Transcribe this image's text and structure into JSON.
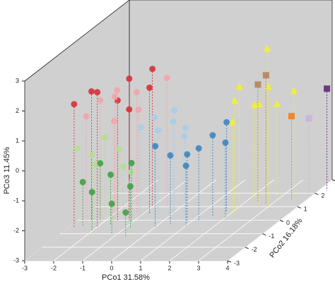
{
  "chart_data": {
    "type": "scatter3d",
    "xlabel": "PCo1 31.58%",
    "ylabel": "PCo2 16.18%",
    "zlabel": "PCo3 11.45%",
    "xlim": [
      -3,
      4
    ],
    "ylim": [
      -3,
      3
    ],
    "zlim": [
      -3,
      3
    ],
    "xticks": [
      -3,
      -2,
      -1,
      0,
      1,
      2,
      3,
      4
    ],
    "yticks": [
      -3,
      -2,
      -1,
      0,
      1,
      2,
      3
    ],
    "zticks": [
      -3,
      -2,
      -1,
      0,
      1,
      2,
      3
    ],
    "grid": true,
    "series": [
      {
        "color": "#d7303a",
        "marker": "circle",
        "x": [
          -2.5,
          -2.8,
          -1.5,
          -1.0,
          -1.2,
          -2.0,
          -1.6,
          -0.8
        ],
        "y": [
          0,
          -0.5,
          0.5,
          1,
          0,
          -0.5,
          0,
          0.5
        ],
        "z": [
          1.3,
          1.1,
          1.5,
          1.6,
          0.7,
          1.5,
          1.0,
          1.2
        ]
      },
      {
        "color": "#f4a3a8",
        "marker": "circle",
        "x": [
          -2.2,
          -1.8,
          -1.3,
          -2.5,
          -1.0,
          -1.6,
          -0.5,
          -2.0
        ],
        "y": [
          0,
          0.3,
          0.6,
          -0.3,
          0.2,
          -0.2,
          1,
          0.5
        ],
        "z": [
          1.0,
          1.2,
          1.0,
          0.6,
          0.6,
          0.4,
          1.3,
          0.9
        ]
      },
      {
        "color": "#a9cde6",
        "marker": "circle",
        "x": [
          -0.5,
          -0.2,
          0.2,
          0.5,
          -0.8,
          0.0,
          0.7
        ],
        "y": [
          0.3,
          0,
          0.2,
          0.4,
          0,
          0.6,
          0
        ],
        "z": [
          0.3,
          0,
          0.2,
          -0.1,
          0.1,
          0.4,
          -0.2
        ]
      },
      {
        "color": "#3d85c0",
        "marker": "circle",
        "x": [
          0,
          0.4,
          0.8,
          1.2,
          1.5,
          1.8,
          1.0,
          2.0
        ],
        "y": [
          -0.5,
          -0.3,
          0,
          0,
          0.3,
          0.6,
          -0.4,
          0.2
        ],
        "z": [
          -0.3,
          -0.7,
          -0.8,
          -0.6,
          -0.3,
          0,
          -1.0,
          -0.5
        ]
      },
      {
        "color": "#b5dd93",
        "marker": "circle",
        "x": [
          -3,
          -2.6,
          -2.2,
          -1.8,
          -1.4,
          -2.4,
          -1.0
        ],
        "y": [
          0,
          0.2,
          -0.3,
          0.4,
          0,
          0.6,
          -0.2
        ],
        "z": [
          -0.6,
          -0.9,
          -1.0,
          -0.8,
          -1.2,
          -0.5,
          -1.3
        ]
      },
      {
        "color": "#43a145",
        "marker": "circle",
        "x": [
          -2.5,
          -2.0,
          -1.6,
          -1.2,
          -0.8,
          -2.2,
          -1.0,
          -0.6
        ],
        "y": [
          -0.5,
          -0.8,
          -0.4,
          -1,
          -0.6,
          0,
          -0.2,
          -1.2
        ],
        "z": [
          -1.5,
          -1.7,
          -1.3,
          -2.0,
          -1.6,
          -1.1,
          -1.0,
          -2.2
        ]
      },
      {
        "color": "#f2f033",
        "marker": "triangle",
        "x": [
          2.0,
          2.4,
          2.8,
          3.0,
          2.2,
          3.4,
          2.6,
          3.0,
          2.0
        ],
        "y": [
          1,
          1.2,
          0.8,
          1.5,
          0.4,
          1.8,
          1.6,
          1.0,
          0.6
        ],
        "z": [
          1.0,
          0.3,
          0.5,
          0.2,
          0.8,
          0.5,
          2.0,
          1.0,
          0.0
        ]
      },
      {
        "color": "#b5845a",
        "marker": "square",
        "x": [
          2.4,
          2.8
        ],
        "y": [
          1.4,
          1.2
        ],
        "z": [
          0.9,
          1.3
        ]
      },
      {
        "color": "#f07f1a",
        "marker": "square",
        "x": [
          3.5
        ],
        "y": [
          1.5
        ],
        "z": [
          -0.2
        ]
      },
      {
        "color": "#c9b4dc",
        "marker": "square",
        "x": [
          3.8
        ],
        "y": [
          2.0
        ],
        "z": [
          -0.5
        ]
      },
      {
        "color": "#5e2a78",
        "marker": "square",
        "x": [
          4.3
        ],
        "y": [
          2.2
        ],
        "z": [
          0.4
        ]
      }
    ]
  }
}
